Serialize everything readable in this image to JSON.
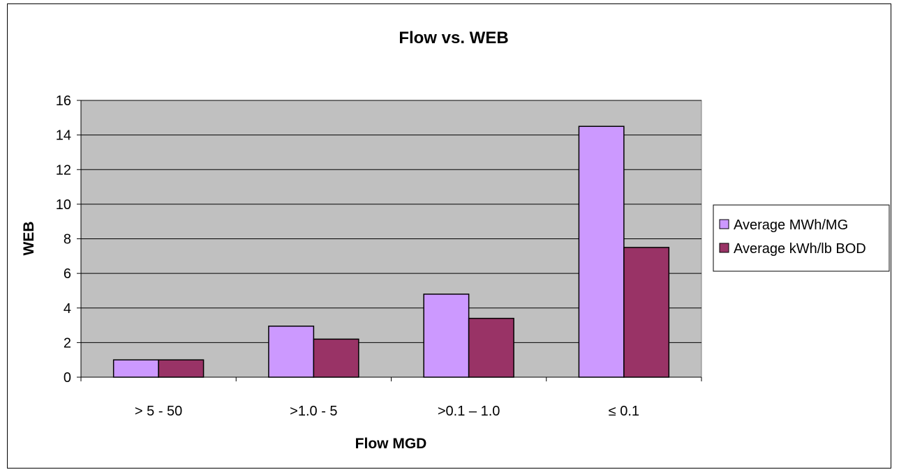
{
  "chart_data": {
    "type": "bar",
    "title": "Flow vs. WEB",
    "xlabel": "Flow MGD",
    "ylabel": "WEB",
    "categories": [
      "> 5 - 50",
      ">1.0 -  5",
      ">0.1 – 1.0",
      "≤ 0.1"
    ],
    "series": [
      {
        "name": "Average MWh/MG",
        "color": "#cc99ff",
        "values": [
          1.0,
          2.95,
          4.8,
          14.5
        ]
      },
      {
        "name": "Average kWh/lb BOD",
        "color": "#993366",
        "values": [
          1.0,
          2.2,
          3.4,
          7.5
        ]
      }
    ],
    "ylim": [
      0,
      16
    ],
    "yticks": [
      0,
      2,
      4,
      6,
      8,
      10,
      12,
      14,
      16
    ],
    "grid": true,
    "plot_background": "#c0c0c0",
    "legend_position": "right"
  }
}
